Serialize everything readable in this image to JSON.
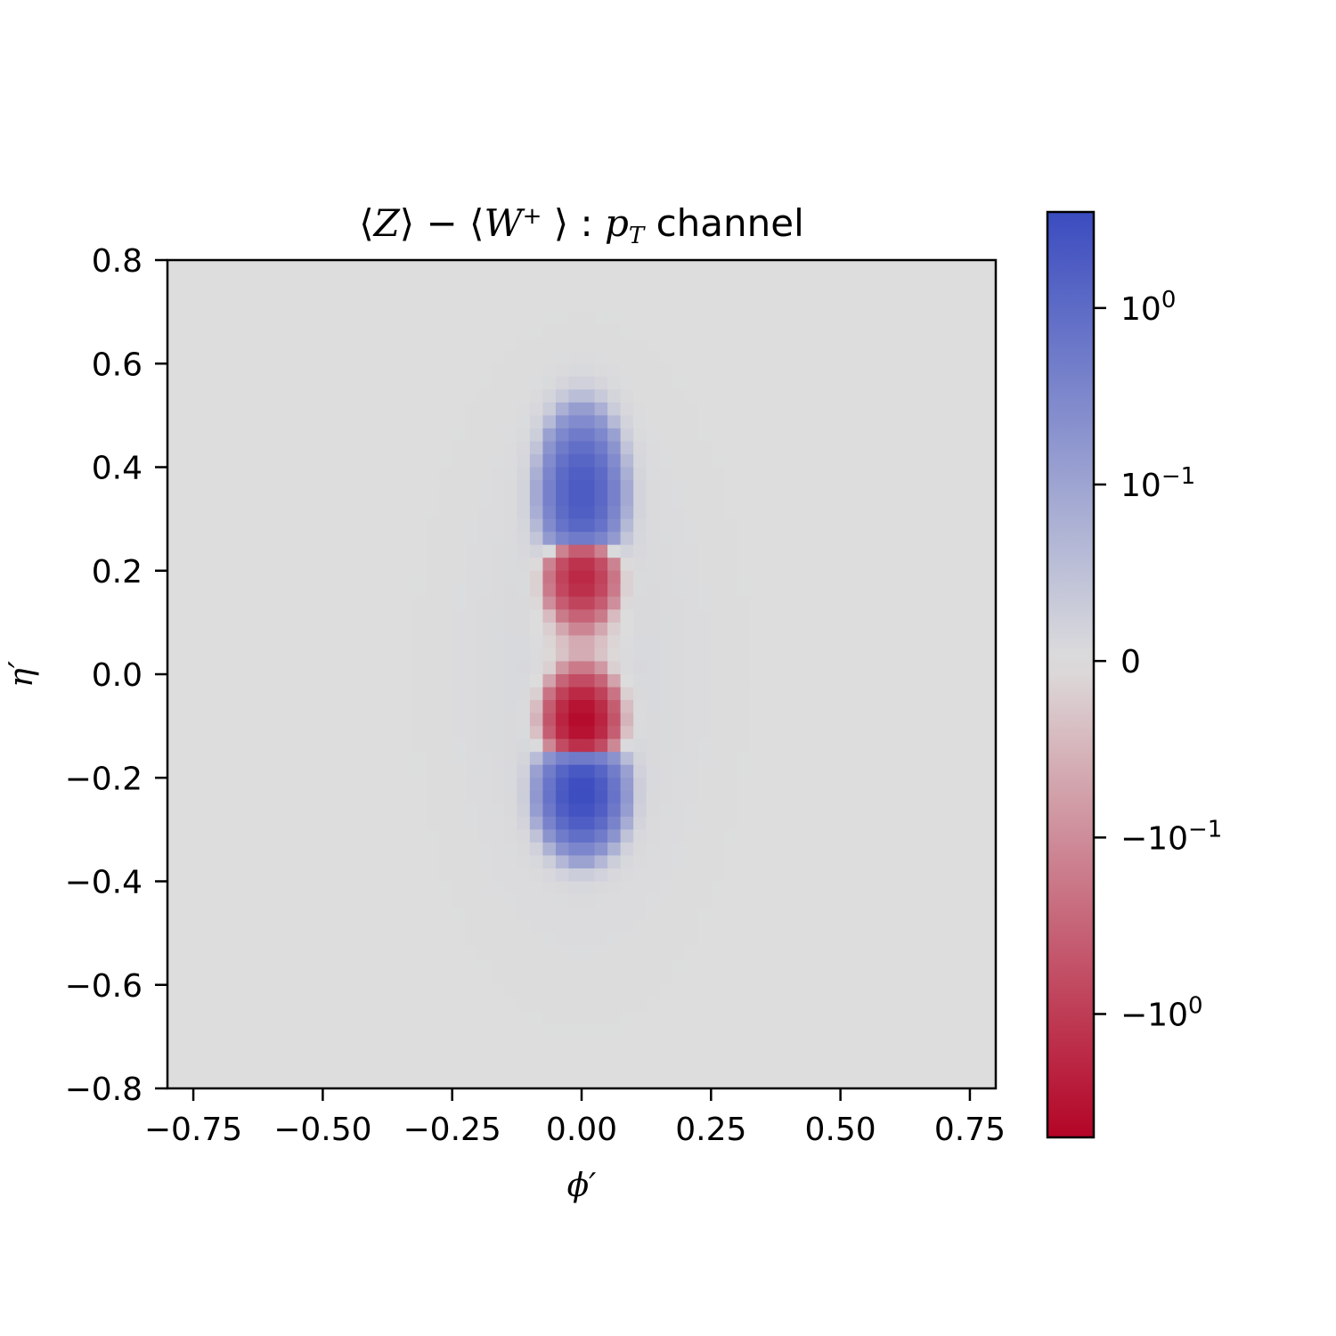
{
  "chart_data": {
    "type": "heatmap",
    "title": {
      "z": "Z",
      "w": "W",
      "plus": "+",
      "p": "p",
      "sub": "T",
      "tail": "channel"
    },
    "xlabel": "ϕ′",
    "ylabel": "η′",
    "xlim": [
      -0.8,
      0.8
    ],
    "ylim": [
      -0.8,
      0.8
    ],
    "x_ticks": [
      -0.75,
      -0.5,
      -0.25,
      0.0,
      0.25,
      0.5,
      0.75
    ],
    "x_tick_labels": [
      "−0.75",
      "−0.50",
      "−0.25",
      "0.00",
      "0.25",
      "0.50",
      "0.75"
    ],
    "y_ticks": [
      0.8,
      0.6,
      0.4,
      0.2,
      0.0,
      -0.2,
      -0.4,
      -0.6,
      -0.8
    ],
    "y_tick_labels": [
      "0.8",
      "0.6",
      "0.4",
      "0.2",
      "0.0",
      "−0.2",
      "−0.4",
      "−0.6",
      "−0.8"
    ],
    "grid": "off",
    "colormap": "coolwarm_r",
    "norm": "symlog",
    "linthresh": 0.1,
    "vmin": -5.0,
    "vmax": 3.5,
    "colorbar": {
      "position": "right",
      "ticks": [
        {
          "value": 1.0,
          "label": "10",
          "exp": "0"
        },
        {
          "value": 0.1,
          "label": "10",
          "exp": "−1"
        },
        {
          "value": 0.0,
          "label": "0",
          "exp": ""
        },
        {
          "value": -0.1,
          "label": "−10",
          "exp": "−1"
        },
        {
          "value": -1.0,
          "label": "−10",
          "exp": "0"
        }
      ]
    },
    "components": [
      {
        "phi": 0.0,
        "eta": 0.35,
        "sigma_phi": 0.035,
        "sigma_eta": 0.07,
        "amplitude": 2.0
      },
      {
        "phi": 0.0,
        "eta": 0.19,
        "sigma_phi": 0.03,
        "sigma_eta": 0.04,
        "amplitude": -2.0
      },
      {
        "phi": 0.0,
        "eta": 0.09,
        "sigma_phi": 0.04,
        "sigma_eta": 0.06,
        "amplitude": -0.07
      },
      {
        "phi": 0.0,
        "eta": -0.09,
        "sigma_phi": 0.03,
        "sigma_eta": 0.04,
        "amplitude": -4.5
      },
      {
        "phi": 0.0,
        "eta": -0.23,
        "sigma_phi": 0.035,
        "sigma_eta": 0.05,
        "amplitude": 3.5
      },
      {
        "phi": 0.0,
        "eta": 0.0,
        "sigma_phi": 0.14,
        "sigma_eta": 0.3,
        "amplitude": 0.012
      }
    ],
    "grid_bins": 64,
    "color_min": "#b40426",
    "color_mid": "#dddddd",
    "color_max": "#3b4cc0"
  }
}
